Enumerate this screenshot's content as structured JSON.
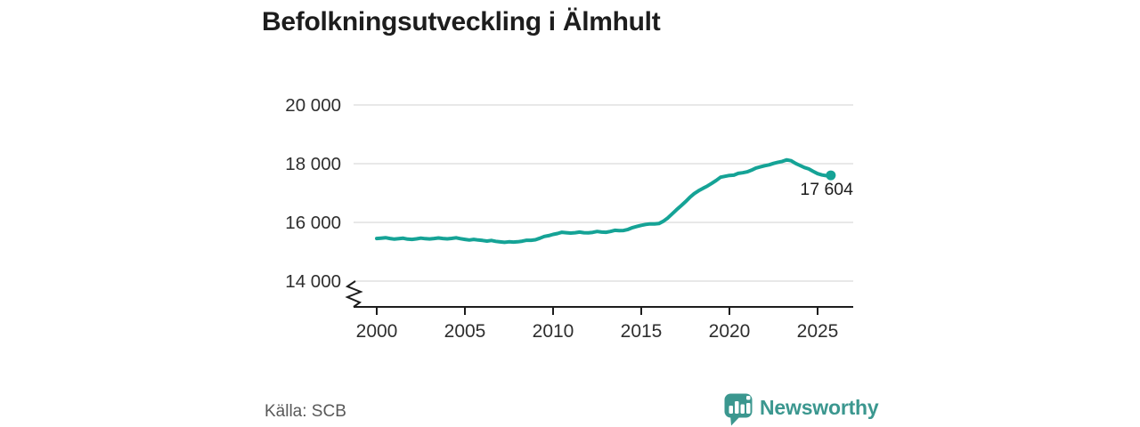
{
  "chart_data": {
    "type": "line",
    "title": "Befolkningsutveckling i Älmhult",
    "xlabel": "",
    "ylabel": "",
    "grid": "horizontal",
    "legend": "none",
    "y_axis_break": true,
    "y_ticks": [
      {
        "value": 20000,
        "label": "20 000"
      },
      {
        "value": 18000,
        "label": "18 000"
      },
      {
        "value": 16000,
        "label": "16 000"
      },
      {
        "value": 14000,
        "label": "14 000"
      }
    ],
    "x_ticks": [
      {
        "value": 2000,
        "label": "2000"
      },
      {
        "value": 2005,
        "label": "2005"
      },
      {
        "value": 2010,
        "label": "2010"
      },
      {
        "value": 2015,
        "label": "2015"
      },
      {
        "value": 2020,
        "label": "2020"
      },
      {
        "value": 2025,
        "label": "2025"
      }
    ],
    "series": [
      {
        "x_start": 2000,
        "x_step": 0.25,
        "values": [
          15450,
          15465,
          15480,
          15450,
          15430,
          15445,
          15460,
          15430,
          15420,
          15440,
          15465,
          15445,
          15435,
          15450,
          15470,
          15450,
          15440,
          15455,
          15475,
          15445,
          15420,
          15400,
          15420,
          15400,
          15385,
          15365,
          15385,
          15355,
          15335,
          15320,
          15340,
          15330,
          15340,
          15360,
          15390,
          15390,
          15410,
          15460,
          15520,
          15550,
          15590,
          15620,
          15665,
          15650,
          15635,
          15650,
          15670,
          15650,
          15645,
          15660,
          15690,
          15670,
          15665,
          15690,
          15730,
          15720,
          15725,
          15760,
          15820,
          15860,
          15900,
          15930,
          15950,
          15945,
          15960,
          16040,
          16150,
          16290,
          16430,
          16560,
          16700,
          16850,
          16980,
          17080,
          17160,
          17240,
          17330,
          17430,
          17540,
          17570,
          17600,
          17610,
          17670,
          17690,
          17720,
          17780,
          17850,
          17890,
          17930,
          17960,
          18010,
          18050,
          18080,
          18130,
          18100,
          18010,
          17940,
          17870,
          17820,
          17740,
          17660,
          17615,
          17590,
          17604
        ]
      }
    ],
    "end_annotation": {
      "label": "17 604",
      "value": 17604
    }
  },
  "footer": {
    "source": "Källa: SCB",
    "brand": "Newsworthy"
  },
  "colors": {
    "line": "#15a396",
    "grid": "#d9d9d9",
    "axis": "#1d1d1d",
    "tick_text": "#2e2e2e",
    "annotation_text": "#1d1d1d",
    "muted_text": "#595959",
    "brand_teal": "#3b978f"
  }
}
